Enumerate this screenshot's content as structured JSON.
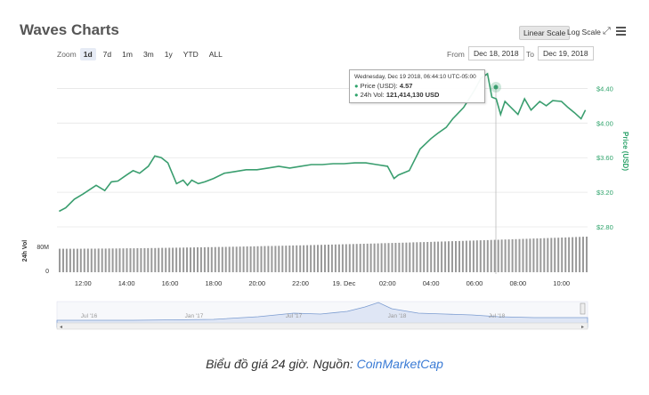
{
  "header": {
    "title": "Waves Charts",
    "linear_scale": "Linear Scale",
    "log_scale": "Log Scale"
  },
  "zoom": {
    "label": "Zoom",
    "options": [
      "1d",
      "7d",
      "1m",
      "3m",
      "1y",
      "YTD",
      "ALL"
    ],
    "active": "1d"
  },
  "range": {
    "from_label": "From",
    "from_value": "Dec 18, 2018",
    "to_label": "To",
    "to_value": "Dec 19, 2018"
  },
  "tooltip": {
    "heading": "Wednesday, Dec 19 2018, 06:44:10 UTC-05:00",
    "price_label": "Price (USD):",
    "price_value": "4.57",
    "vol_label": "24h Vol:",
    "vol_value": "121,414,130 USD"
  },
  "caption": {
    "text": "Biểu đồ giá 24 giờ. Nguồn: ",
    "source": "CoinMarketCap"
  },
  "colors": {
    "line": "#3a9e6f",
    "volume": "#999999",
    "accent": "#2ea36b"
  },
  "chart_data": [
    {
      "type": "line",
      "title": "Waves Charts",
      "xlabel": "",
      "ylabel": "Price (USD)",
      "x_ticks": [
        "12:00",
        "14:00",
        "16:00",
        "18:00",
        "20:00",
        "22:00",
        "19. Dec",
        "02:00",
        "04:00",
        "06:00",
        "08:00",
        "10:00"
      ],
      "y_ticks": [
        "$2.80",
        "$3.20",
        "$3.60",
        "$4.00",
        "$4.40"
      ],
      "ylim": [
        2.8,
        4.6
      ],
      "xlim": [
        10.8,
        35.2
      ],
      "x": [
        10.9,
        11.2,
        11.6,
        12.0,
        12.6,
        13.0,
        13.3,
        13.6,
        14.0,
        14.3,
        14.6,
        15.0,
        15.3,
        15.6,
        15.9,
        16.0,
        16.3,
        16.6,
        16.8,
        17.0,
        17.3,
        17.6,
        18.0,
        18.5,
        19.0,
        19.5,
        20.0,
        20.5,
        21.0,
        21.5,
        22.0,
        22.5,
        23.0,
        23.5,
        24.0,
        24.5,
        25.0,
        25.5,
        26.0,
        26.3,
        26.5,
        27.0,
        27.5,
        28.0,
        28.3,
        28.7,
        29.0,
        29.5,
        30.0,
        30.3,
        30.6,
        30.8,
        31.0,
        31.2,
        31.4,
        31.6,
        32.0,
        32.3,
        32.6,
        33.0,
        33.3,
        33.6,
        34.0,
        34.3,
        34.6,
        34.9,
        35.1
      ],
      "y": [
        2.98,
        3.02,
        3.12,
        3.18,
        3.28,
        3.22,
        3.32,
        3.33,
        3.4,
        3.45,
        3.42,
        3.5,
        3.62,
        3.6,
        3.54,
        3.48,
        3.3,
        3.34,
        3.28,
        3.34,
        3.3,
        3.32,
        3.36,
        3.42,
        3.44,
        3.46,
        3.46,
        3.48,
        3.5,
        3.48,
        3.5,
        3.52,
        3.52,
        3.53,
        3.53,
        3.54,
        3.54,
        3.52,
        3.5,
        3.36,
        3.4,
        3.45,
        3.7,
        3.82,
        3.88,
        3.95,
        4.05,
        4.18,
        4.38,
        4.52,
        4.57,
        4.3,
        4.28,
        4.1,
        4.25,
        4.2,
        4.1,
        4.28,
        4.15,
        4.25,
        4.2,
        4.26,
        4.25,
        4.18,
        4.12,
        4.05,
        4.15
      ],
      "grid": true
    },
    {
      "type": "bar",
      "title": "",
      "ylabel": "24h Vol",
      "y_ticks": [
        "0",
        "80M"
      ],
      "ylim": [
        0,
        121414130
      ],
      "start_value": 80000000,
      "end_value": 121414130
    },
    {
      "type": "area",
      "title": "",
      "x_ticks": [
        "Jul '16",
        "Jan '17",
        "Jul '17",
        "Jan '18",
        "Jul '18"
      ]
    }
  ]
}
